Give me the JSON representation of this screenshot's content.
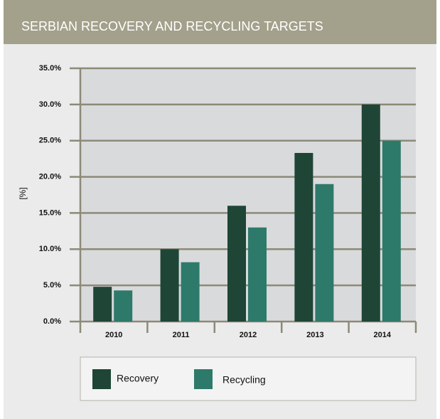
{
  "chart_data": {
    "type": "bar",
    "title": "SERBIAN RECOVERY AND RECYCLING TARGETS",
    "y_label": "[%]",
    "categories": [
      "2010",
      "2011",
      "2012",
      "2013",
      "2014"
    ],
    "series": [
      {
        "name": "Recovery",
        "color": "#1f4536",
        "values": [
          4.8,
          10,
          16,
          23.3,
          30
        ]
      },
      {
        "name": "Recycling",
        "color": "#2d7a6b",
        "values": [
          4.3,
          8.2,
          13,
          19,
          25
        ]
      }
    ],
    "ylim": [
      0,
      35
    ],
    "yticks": [
      {
        "value": 0,
        "label": "0.0%"
      },
      {
        "value": 5,
        "label": "5.0%"
      },
      {
        "value": 10,
        "label": "10.0%"
      },
      {
        "value": 15,
        "label": "15.0%"
      },
      {
        "value": 20,
        "label": "20.0%"
      },
      {
        "value": 25,
        "label": "25.0%"
      },
      {
        "value": 30,
        "label": "30.0%"
      },
      {
        "value": 35,
        "label": "35.0%"
      }
    ],
    "grid": true
  }
}
